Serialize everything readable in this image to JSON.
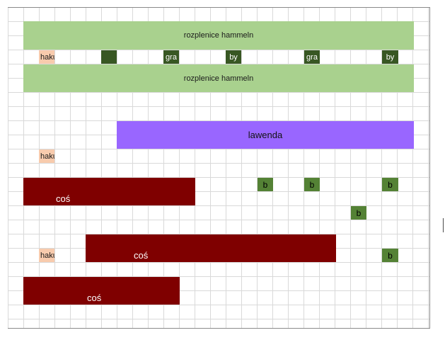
{
  "sheet": {
    "band_label": "rozplenice hammeln",
    "hakuro_label": "hakuro",
    "gra_label": "gra",
    "by_label": "by",
    "lavender_label": "lawenda",
    "cos_label": "coś",
    "b_label": "b"
  },
  "colors": {
    "light_green": "#a9d18e",
    "peach": "#f8cbad",
    "dark_green": "#385723",
    "medium_green": "#548235",
    "purple": "#9966ff",
    "maroon": "#7f0000",
    "grid_line": "#d9d9d9"
  }
}
